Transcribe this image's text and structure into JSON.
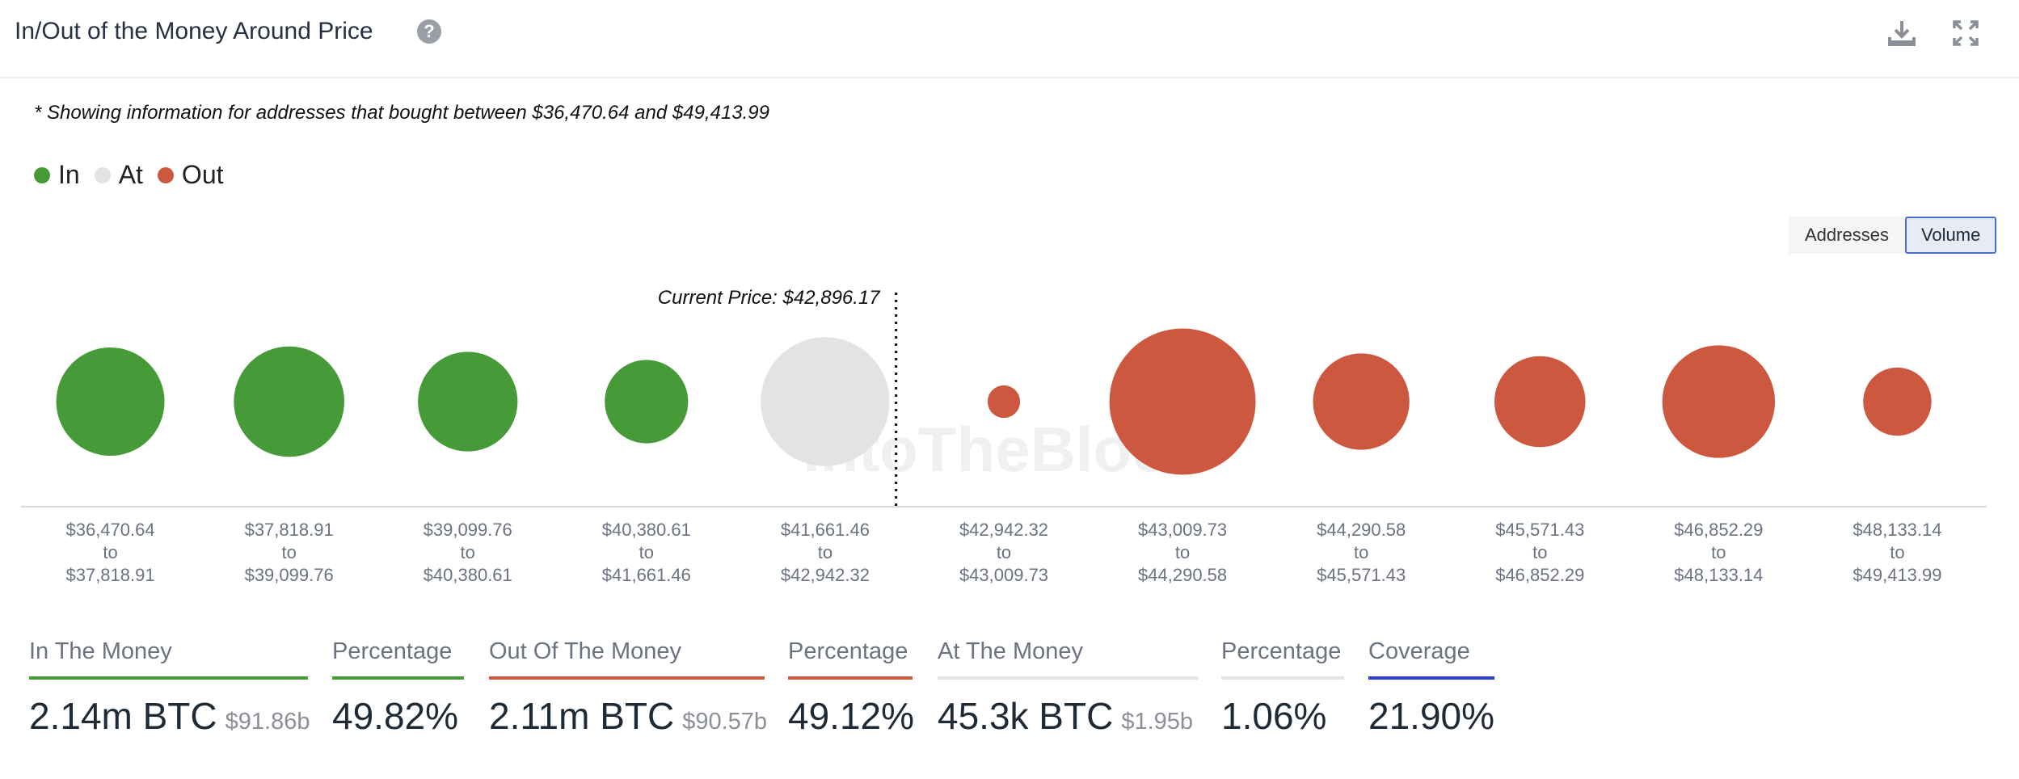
{
  "header": {
    "title": "In/Out of the Money Around Price",
    "help": "?"
  },
  "note": "* Showing information for addresses that bought between $36,470.64 and $49,413.99",
  "legend": [
    {
      "label": "In",
      "color": "#469b38"
    },
    {
      "label": "At",
      "color": "#e3e3e3"
    },
    {
      "label": "Out",
      "color": "#cd5840"
    }
  ],
  "toggle": {
    "addresses": "Addresses",
    "volume": "Volume",
    "active": "Volume"
  },
  "watermark": "IntoTheBlock",
  "chart_data": {
    "type": "bubble",
    "current_price_label": "Current Price: $42,896.17",
    "current_price": 42896.17,
    "bins": [
      {
        "from": "$36,470.64",
        "to": "$37,818.91",
        "status": "In",
        "size": 1.0
      },
      {
        "from": "$37,818.91",
        "to": "$39,099.76",
        "status": "In",
        "size": 1.02
      },
      {
        "from": "$39,099.76",
        "to": "$40,380.61",
        "status": "In",
        "size": 0.92
      },
      {
        "from": "$40,380.61",
        "to": "$41,661.46",
        "status": "In",
        "size": 0.77
      },
      {
        "from": "$41,661.46",
        "to": "$42,942.32",
        "status": "At",
        "size": 1.19
      },
      {
        "from": "$42,942.32",
        "to": "$43,009.73",
        "status": "Out",
        "size": 0.3
      },
      {
        "from": "$43,009.73",
        "to": "$44,290.58",
        "status": "Out",
        "size": 1.35
      },
      {
        "from": "$44,290.58",
        "to": "$45,571.43",
        "status": "Out",
        "size": 0.89
      },
      {
        "from": "$45,571.43",
        "to": "$46,852.29",
        "status": "Out",
        "size": 0.84
      },
      {
        "from": "$46,852.29",
        "to": "$48,133.14",
        "status": "Out",
        "size": 1.04
      },
      {
        "from": "$48,133.14",
        "to": "$49,413.99",
        "status": "Out",
        "size": 0.63
      }
    ],
    "to_word": "to",
    "colors": {
      "In": "#469b38",
      "At": "#e3e3e3",
      "Out": "#cd5840"
    }
  },
  "stats": [
    {
      "label": "In The Money",
      "value": "2.14m BTC",
      "sub": "$91.86b",
      "color": "#469b38"
    },
    {
      "label": "Percentage",
      "value": "49.82%",
      "sub": "",
      "color": "#469b38"
    },
    {
      "label": "Out Of The Money",
      "value": "2.11m BTC",
      "sub": "$90.57b",
      "color": "#cd5840"
    },
    {
      "label": "Percentage",
      "value": "49.12%",
      "sub": "",
      "color": "#cd5840"
    },
    {
      "label": "At The Money",
      "value": "45.3k BTC",
      "sub": "$1.95b",
      "color": "#e3e3e3"
    },
    {
      "label": "Percentage",
      "value": "1.06%",
      "sub": "",
      "color": "#e3e3e3"
    },
    {
      "label": "Coverage",
      "value": "21.90%",
      "sub": "",
      "color": "#2a3fd6"
    }
  ]
}
